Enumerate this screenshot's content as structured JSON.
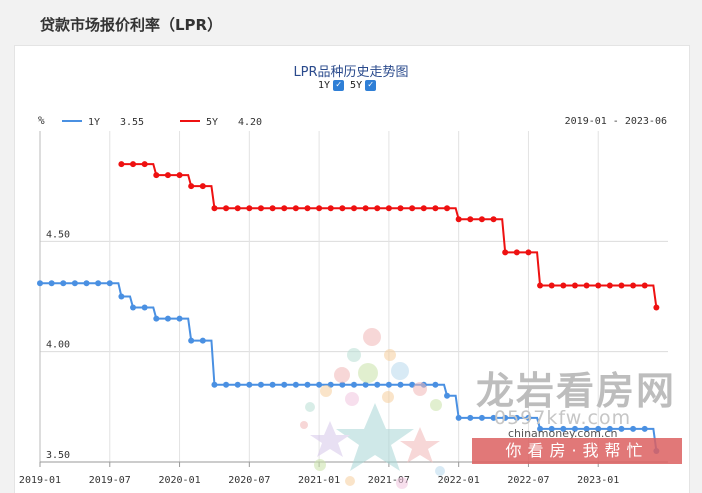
{
  "page": {
    "title": "贷款市场报价利率（LPR）"
  },
  "toggles": [
    {
      "label": "1Y",
      "checked": true
    },
    {
      "label": "5Y",
      "checked": true
    }
  ],
  "watermark": {
    "name": "龙岩看房网",
    "domain": "0597kfw.com",
    "slogan": "你看房·我帮忙",
    "small": "chinamoney.com.cn"
  },
  "chart_data": {
    "type": "line",
    "title": "LPR品种历史走势图",
    "date_range": "2019-01 - 2023-06",
    "ylabel": "%",
    "ylim": [
      3.5,
      5.0
    ],
    "yticks": [
      "4.50",
      "4.00",
      "3.50"
    ],
    "xticks": [
      "2019-01",
      "2019-07",
      "2020-01",
      "2020-07",
      "2021-01",
      "2021-07",
      "2022-01",
      "2022-07",
      "2023-01"
    ],
    "grid": true,
    "legend_position": "top-left",
    "series": [
      {
        "name": "1Y",
        "latest": "3.55",
        "color": "#4a90e2",
        "points": [
          [
            "2019-01",
            4.31
          ],
          [
            "2019-02",
            4.31
          ],
          [
            "2019-03",
            4.31
          ],
          [
            "2019-04",
            4.31
          ],
          [
            "2019-05",
            4.31
          ],
          [
            "2019-06",
            4.31
          ],
          [
            "2019-07",
            4.31
          ],
          [
            "2019-08",
            4.25
          ],
          [
            "2019-09",
            4.2
          ],
          [
            "2019-10",
            4.2
          ],
          [
            "2019-11",
            4.15
          ],
          [
            "2019-12",
            4.15
          ],
          [
            "2020-01",
            4.15
          ],
          [
            "2020-02",
            4.05
          ],
          [
            "2020-03",
            4.05
          ],
          [
            "2020-04",
            3.85
          ],
          [
            "2020-05",
            3.85
          ],
          [
            "2020-06",
            3.85
          ],
          [
            "2020-07",
            3.85
          ],
          [
            "2020-08",
            3.85
          ],
          [
            "2020-09",
            3.85
          ],
          [
            "2020-10",
            3.85
          ],
          [
            "2020-11",
            3.85
          ],
          [
            "2020-12",
            3.85
          ],
          [
            "2021-01",
            3.85
          ],
          [
            "2021-02",
            3.85
          ],
          [
            "2021-03",
            3.85
          ],
          [
            "2021-04",
            3.85
          ],
          [
            "2021-05",
            3.85
          ],
          [
            "2021-06",
            3.85
          ],
          [
            "2021-07",
            3.85
          ],
          [
            "2021-08",
            3.85
          ],
          [
            "2021-09",
            3.85
          ],
          [
            "2021-10",
            3.85
          ],
          [
            "2021-11",
            3.85
          ],
          [
            "2021-12",
            3.8
          ],
          [
            "2022-01",
            3.7
          ],
          [
            "2022-02",
            3.7
          ],
          [
            "2022-03",
            3.7
          ],
          [
            "2022-04",
            3.7
          ],
          [
            "2022-05",
            3.7
          ],
          [
            "2022-06",
            3.7
          ],
          [
            "2022-07",
            3.7
          ],
          [
            "2022-08",
            3.65
          ],
          [
            "2022-09",
            3.65
          ],
          [
            "2022-10",
            3.65
          ],
          [
            "2022-11",
            3.65
          ],
          [
            "2022-12",
            3.65
          ],
          [
            "2023-01",
            3.65
          ],
          [
            "2023-02",
            3.65
          ],
          [
            "2023-03",
            3.65
          ],
          [
            "2023-04",
            3.65
          ],
          [
            "2023-05",
            3.65
          ],
          [
            "2023-06",
            3.55
          ]
        ]
      },
      {
        "name": "5Y",
        "latest": "4.20",
        "color": "#ee1111",
        "points": [
          [
            "2019-08",
            4.85
          ],
          [
            "2019-09",
            4.85
          ],
          [
            "2019-10",
            4.85
          ],
          [
            "2019-11",
            4.8
          ],
          [
            "2019-12",
            4.8
          ],
          [
            "2020-01",
            4.8
          ],
          [
            "2020-02",
            4.75
          ],
          [
            "2020-03",
            4.75
          ],
          [
            "2020-04",
            4.65
          ],
          [
            "2020-05",
            4.65
          ],
          [
            "2020-06",
            4.65
          ],
          [
            "2020-07",
            4.65
          ],
          [
            "2020-08",
            4.65
          ],
          [
            "2020-09",
            4.65
          ],
          [
            "2020-10",
            4.65
          ],
          [
            "2020-11",
            4.65
          ],
          [
            "2020-12",
            4.65
          ],
          [
            "2021-01",
            4.65
          ],
          [
            "2021-02",
            4.65
          ],
          [
            "2021-03",
            4.65
          ],
          [
            "2021-04",
            4.65
          ],
          [
            "2021-05",
            4.65
          ],
          [
            "2021-06",
            4.65
          ],
          [
            "2021-07",
            4.65
          ],
          [
            "2021-08",
            4.65
          ],
          [
            "2021-09",
            4.65
          ],
          [
            "2021-10",
            4.65
          ],
          [
            "2021-11",
            4.65
          ],
          [
            "2021-12",
            4.65
          ],
          [
            "2022-01",
            4.6
          ],
          [
            "2022-02",
            4.6
          ],
          [
            "2022-03",
            4.6
          ],
          [
            "2022-04",
            4.6
          ],
          [
            "2022-05",
            4.45
          ],
          [
            "2022-06",
            4.45
          ],
          [
            "2022-07",
            4.45
          ],
          [
            "2022-08",
            4.3
          ],
          [
            "2022-09",
            4.3
          ],
          [
            "2022-10",
            4.3
          ],
          [
            "2022-11",
            4.3
          ],
          [
            "2022-12",
            4.3
          ],
          [
            "2023-01",
            4.3
          ],
          [
            "2023-02",
            4.3
          ],
          [
            "2023-03",
            4.3
          ],
          [
            "2023-04",
            4.3
          ],
          [
            "2023-05",
            4.3
          ],
          [
            "2023-06",
            4.2
          ]
        ]
      }
    ]
  }
}
